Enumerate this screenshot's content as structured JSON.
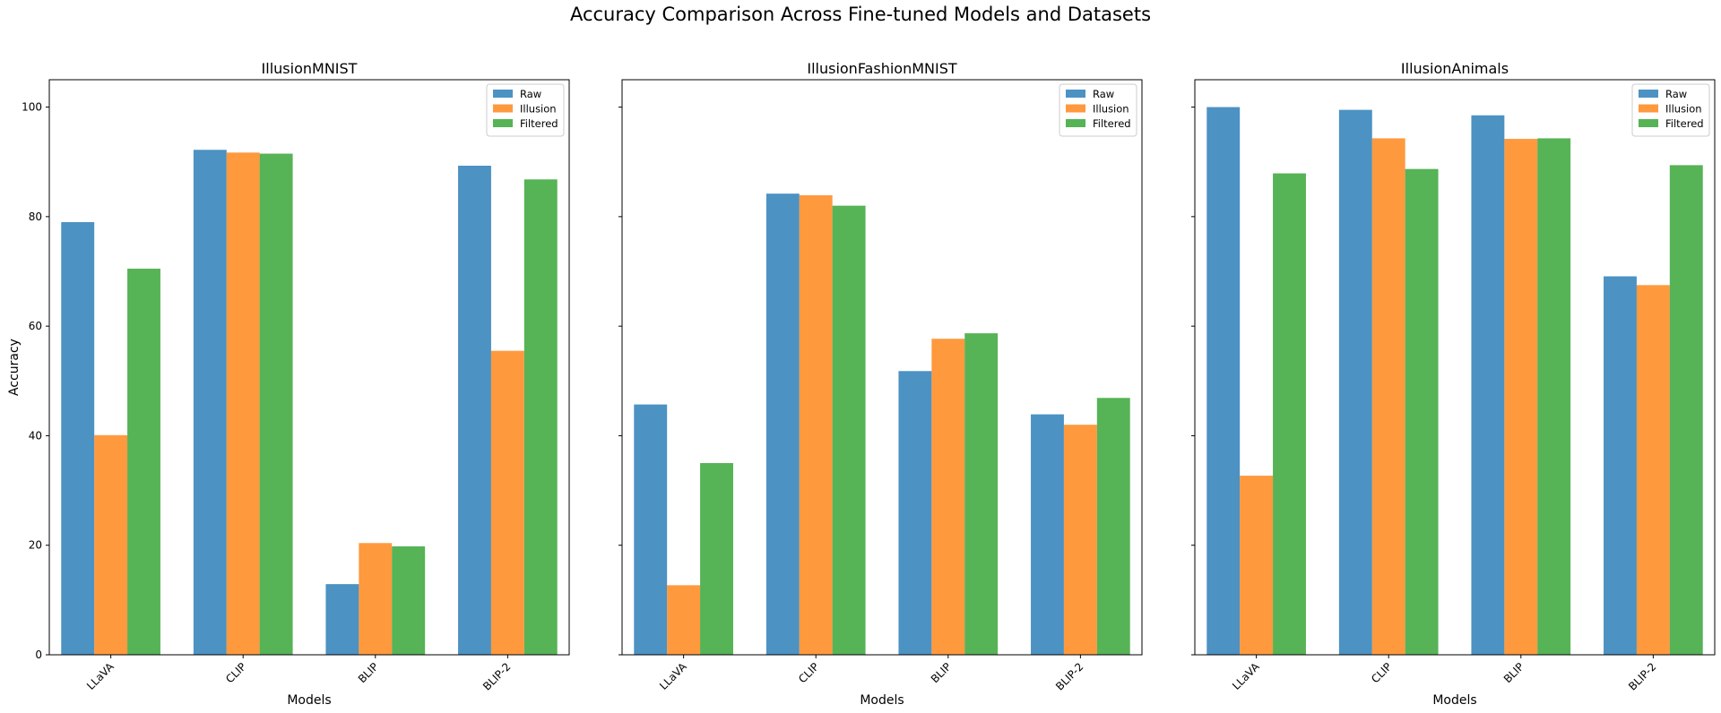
{
  "figure": {
    "suptitle": "Accuracy Comparison Across Fine-tuned Models and Datasets"
  },
  "chart_data": [
    {
      "type": "bar",
      "title": "IllusionMNIST",
      "xlabel": "Models",
      "ylabel": "Accuracy",
      "categories": [
        "LLaVA",
        "CLIP",
        "BLIP",
        "BLIP-2"
      ],
      "ylim": [
        0,
        105
      ],
      "yticks": [
        0,
        20,
        40,
        60,
        80,
        100
      ],
      "grid": false,
      "legend": "top-right",
      "series": [
        {
          "name": "Raw",
          "color": "#1f77b4",
          "values": [
            79.0,
            92.2,
            12.9,
            89.3
          ]
        },
        {
          "name": "Illusion",
          "color": "#ff7f0e",
          "values": [
            40.1,
            91.7,
            20.4,
            55.5
          ]
        },
        {
          "name": "Filtered",
          "color": "#2ca02c",
          "values": [
            70.5,
            91.5,
            19.8,
            86.8
          ]
        }
      ]
    },
    {
      "type": "bar",
      "title": "IllusionFashionMNIST",
      "xlabel": "Models",
      "ylabel": "",
      "categories": [
        "LLaVA",
        "CLIP",
        "BLIP",
        "BLIP-2"
      ],
      "ylim": [
        0,
        105
      ],
      "yticks": [
        0,
        20,
        40,
        60,
        80,
        100
      ],
      "grid": false,
      "legend": "top-right",
      "series": [
        {
          "name": "Raw",
          "color": "#1f77b4",
          "values": [
            45.7,
            84.2,
            51.8,
            43.9
          ]
        },
        {
          "name": "Illusion",
          "color": "#ff7f0e",
          "values": [
            12.7,
            83.9,
            57.7,
            42.0
          ]
        },
        {
          "name": "Filtered",
          "color": "#2ca02c",
          "values": [
            35.0,
            82.0,
            58.7,
            46.9
          ]
        }
      ]
    },
    {
      "type": "bar",
      "title": "IllusionAnimals",
      "xlabel": "Models",
      "ylabel": "",
      "categories": [
        "LLaVA",
        "CLIP",
        "BLIP",
        "BLIP-2"
      ],
      "ylim": [
        0,
        105
      ],
      "yticks": [
        0,
        20,
        40,
        60,
        80,
        100
      ],
      "grid": false,
      "legend": "top-right",
      "series": [
        {
          "name": "Raw",
          "color": "#1f77b4",
          "values": [
            100.0,
            99.5,
            98.5,
            69.1
          ]
        },
        {
          "name": "Illusion",
          "color": "#ff7f0e",
          "values": [
            32.7,
            94.3,
            94.2,
            67.5
          ]
        },
        {
          "name": "Filtered",
          "color": "#2ca02c",
          "values": [
            87.9,
            88.7,
            94.3,
            89.4
          ]
        }
      ]
    }
  ]
}
